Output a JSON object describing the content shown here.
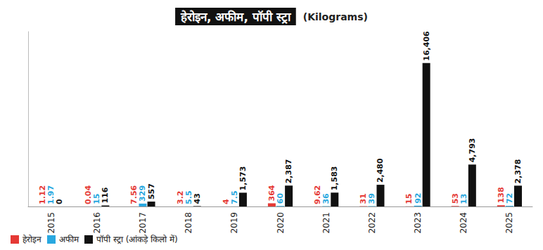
{
  "chart_data": {
    "type": "bar",
    "title": "हेरोइन, अफीम, पॉपी स्ट्रा",
    "subtitle": "(Kilograms)",
    "categories": [
      "2015",
      "2016",
      "2017",
      "2018",
      "2019",
      "2020",
      "2021",
      "2022",
      "2023",
      "2024",
      "2025"
    ],
    "series": [
      {
        "name": "हेरोइन",
        "color": "#e53935",
        "values": [
          1.12,
          0.04,
          7.56,
          3.2,
          4,
          364,
          9.62,
          31,
          15,
          53,
          138
        ]
      },
      {
        "name": "अफीम",
        "color": "#29a8e0",
        "values": [
          1.97,
          15,
          329,
          5.5,
          7.5,
          60,
          36,
          39,
          92,
          13,
          72
        ]
      },
      {
        "name": "पॉपी स्ट्रा (आंकड़े किलो में)",
        "color": "#111111",
        "values": [
          0,
          116,
          557,
          43,
          1573,
          2387,
          1583,
          2480,
          16406,
          4793,
          2378
        ],
        "value_labels": [
          "0",
          "116",
          "557",
          "43",
          "1,573",
          "2,387",
          "1,583",
          "2,480",
          "16,406",
          "4,793",
          "2,378"
        ]
      }
    ],
    "ylim": [
      0,
      20000
    ],
    "grid": false,
    "legend": "bottom-left",
    "data_labels": true,
    "tick_labels": "x"
  }
}
